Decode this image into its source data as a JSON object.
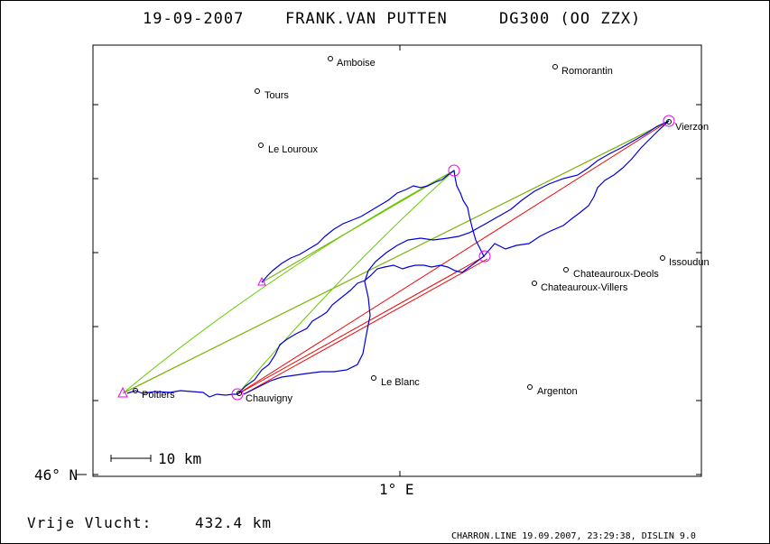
{
  "title": {
    "date": "19-09-2007",
    "pilot": "FRANK.VAN PUTTEN",
    "glider": "DG300 (OO ZZX)"
  },
  "axes": {
    "lat_label": "46° N",
    "lon_label": "1° E"
  },
  "scale_bar": {
    "label": "10 km"
  },
  "distance": {
    "label": "Vrije Vlucht:",
    "value": "432.4 km"
  },
  "footer": "CHARRON.LINE 19.09.2007, 23:29:38, DISLIN 9.0",
  "towns": [
    {
      "id": "amboise",
      "name": "Amboise"
    },
    {
      "id": "romorantin",
      "name": "Romorantin"
    },
    {
      "id": "tours",
      "name": "Tours"
    },
    {
      "id": "le-louroux",
      "name": "Le Louroux"
    },
    {
      "id": "vierzon",
      "name": "Vierzon"
    },
    {
      "id": "issoudun",
      "name": "Issoudun"
    },
    {
      "id": "chateauroux-deols",
      "name": "Chateauroux-Deols"
    },
    {
      "id": "chateauroux-villers",
      "name": "Chateauroux-Villers"
    },
    {
      "id": "le-blanc",
      "name": "Le Blanc"
    },
    {
      "id": "argenton",
      "name": "Argenton"
    },
    {
      "id": "poitiers",
      "name": "Poitiers"
    },
    {
      "id": "chauvigny",
      "name": "Chauvigny"
    }
  ],
  "colors": {
    "track": "#0000dd",
    "task_leg": "#ee0000",
    "alt_leg": "#66cc00",
    "turnpoint": "#ee00ee"
  }
}
